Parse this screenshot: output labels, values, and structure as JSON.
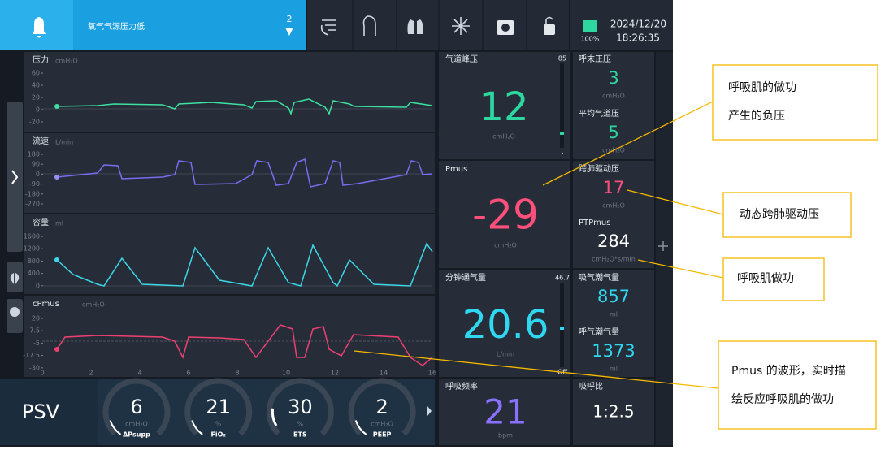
{
  "top_bar": {
    "alarm_message": "氧气气源压力低",
    "alarm_count": "2",
    "battery": "100%",
    "date": "2024/12/20",
    "time": "18:26:35"
  },
  "waveforms": [
    {
      "label": "压力",
      "unit": "cmH₂O",
      "ticks": [
        "60",
        "40",
        "20",
        "0",
        "-20"
      ]
    },
    {
      "label": "流速",
      "unit": "L/min",
      "ticks": [
        "180",
        "90",
        "0",
        "-90",
        "-180",
        "-270"
      ]
    },
    {
      "label": "容量",
      "unit": "ml",
      "ticks": [
        "1600",
        "1200",
        "800",
        "400",
        "0"
      ]
    },
    {
      "label": "cPmus",
      "unit": "cmH₂O",
      "ticks": [
        "20",
        "7.5",
        "-5",
        "-17.5",
        "-30"
      ]
    }
  ],
  "time_axis": [
    "0",
    "2",
    "4",
    "6",
    "8",
    "10",
    "12",
    "14",
    "16"
  ],
  "monitors": [
    {
      "label": "气道峰压",
      "value": "12",
      "unit": "cmH₂O",
      "scale_max": "85",
      "scale_min": "-"
    },
    {
      "label": "Pmus",
      "value": "-29",
      "unit": "cmH₂O"
    },
    {
      "label": "分钟通气量",
      "value": "20.6",
      "unit": "L/min",
      "scale_max": "46.7",
      "scale_min": "Off"
    },
    {
      "label": "呼吸频率",
      "value": "21",
      "unit": "bpm"
    }
  ],
  "side_monitors": [
    {
      "label": "呼末正压",
      "value": "3",
      "unit": "cmH₂O"
    },
    {
      "label": "平均气道压",
      "value": "5",
      "unit": "cmH₂O"
    },
    {
      "label": "跨肺驱动压",
      "value": "17",
      "unit": "cmH₂O"
    },
    {
      "label": "PTPmus",
      "value": "284",
      "unit": "cmH₂O*s/min"
    },
    {
      "label": "吸气潮气量",
      "value": "857",
      "unit": "ml"
    },
    {
      "label": "呼气潮气量",
      "value": "1373",
      "unit": "ml"
    },
    {
      "label": "吸呼比",
      "value": "1:2.5"
    }
  ],
  "mode": "PSV",
  "settings": [
    {
      "value": "6",
      "unit": "cmH₂O",
      "name": "ΔPsupp"
    },
    {
      "value": "21",
      "unit": "%",
      "name": "FiO₂"
    },
    {
      "value": "30",
      "unit": "%",
      "name": "ETS"
    },
    {
      "value": "2",
      "unit": "cmH₂O",
      "name": "PEEP"
    }
  ],
  "annotations": [
    {
      "lines": [
        "呼吸肌的做功",
        "产生的负压"
      ]
    },
    {
      "lines": [
        "动态跨肺驱动压"
      ]
    },
    {
      "lines": [
        "呼吸肌做功"
      ]
    },
    {
      "lines": [
        "Pmus 的波形，实时描",
        "绘反应呼吸肌的做功"
      ]
    }
  ]
}
